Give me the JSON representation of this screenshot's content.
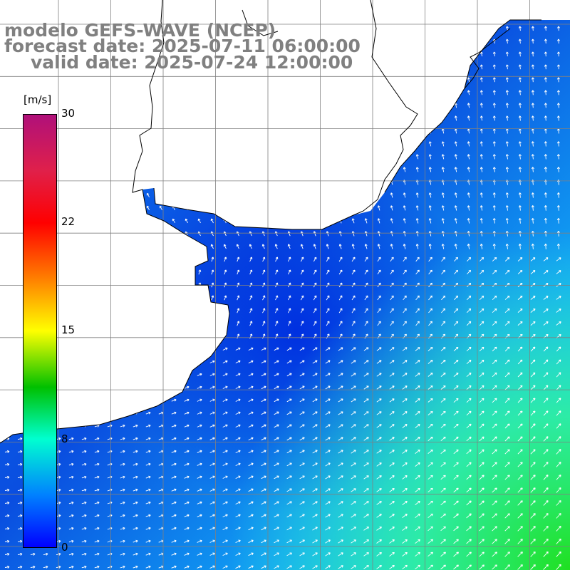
{
  "titles": {
    "model": "modelo GEFS-WAVE (NCEP)",
    "forecast": "forecast date: 2025-07-11 06:00:00",
    "valid": "valid date: 2025-07-24 12:00:00"
  },
  "colorbar": {
    "unit": "[m/s]",
    "ticks": [
      "30",
      "22",
      "15",
      "8",
      "0"
    ],
    "colors": [
      "#b0107a",
      "#e0204a",
      "#ff0000",
      "#ff8000",
      "#ffff00",
      "#00c000",
      "#00ffd0",
      "#0080ff",
      "#0000ff"
    ]
  },
  "map": {
    "land_color": "#ffffff",
    "coast_color": "#000000",
    "grid_color": "#808080",
    "arrow_color": "#ffffff",
    "grid": "on",
    "region": "South Atlantic, Rio de la Plata and southern Brazil coast"
  }
}
